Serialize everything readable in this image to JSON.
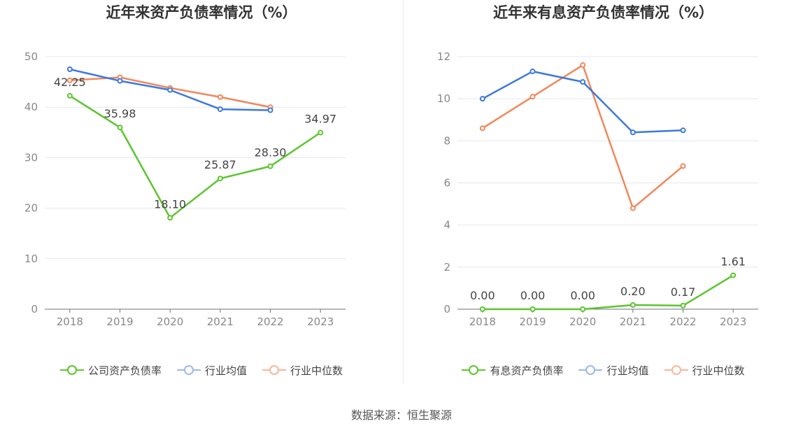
{
  "chart_data": [
    {
      "type": "line",
      "title": "近年来资产负债率情况（%）",
      "categories": [
        "2018",
        "2019",
        "2020",
        "2021",
        "2022",
        "2023"
      ],
      "ylim": [
        0,
        50
      ],
      "yticks": [
        "0",
        "10",
        "20",
        "30",
        "40",
        "50"
      ],
      "grid": true,
      "legend_position": "bottom",
      "series": [
        {
          "name": "公司资产负债率",
          "color": "#5cc52f",
          "values": [
            42.25,
            35.98,
            18.1,
            25.87,
            28.3,
            34.97
          ],
          "labels": [
            "42.25",
            "35.98",
            "18.10",
            "25.87",
            "28.30",
            "34.97"
          ]
        },
        {
          "name": "行业均值",
          "color": "#3d78de",
          "values": [
            47.5,
            45.2,
            43.4,
            39.6,
            39.4,
            null
          ]
        },
        {
          "name": "行业中位数",
          "color": "#f0885a",
          "values": [
            45.3,
            45.9,
            43.8,
            42.0,
            40.0,
            null
          ]
        }
      ]
    },
    {
      "type": "line",
      "title": "近年来有息资产负债率情况（%）",
      "categories": [
        "2018",
        "2019",
        "2020",
        "2021",
        "2022",
        "2023"
      ],
      "ylim": [
        0,
        12
      ],
      "yticks": [
        "0",
        "2",
        "4",
        "6",
        "8",
        "10",
        "12"
      ],
      "grid": true,
      "legend_position": "bottom",
      "series": [
        {
          "name": "有息资产负债率",
          "color": "#5cc52f",
          "values": [
            0.0,
            0.0,
            0.0,
            0.2,
            0.17,
            1.61
          ],
          "labels": [
            "0.00",
            "0.00",
            "0.00",
            "0.20",
            "0.17",
            "1.61"
          ]
        },
        {
          "name": "行业均值",
          "color": "#3d78de",
          "values": [
            10.0,
            11.3,
            10.8,
            8.4,
            8.5,
            null
          ]
        },
        {
          "name": "行业中位数",
          "color": "#f0885a",
          "values": [
            8.6,
            10.1,
            11.6,
            4.8,
            6.8,
            null
          ]
        }
      ]
    }
  ],
  "legend_colors": {
    "active_0": "#5cc52f",
    "faded_1": "#9db9ec",
    "faded_2": "#f5b79b"
  },
  "source": "数据来源：恒生聚源"
}
